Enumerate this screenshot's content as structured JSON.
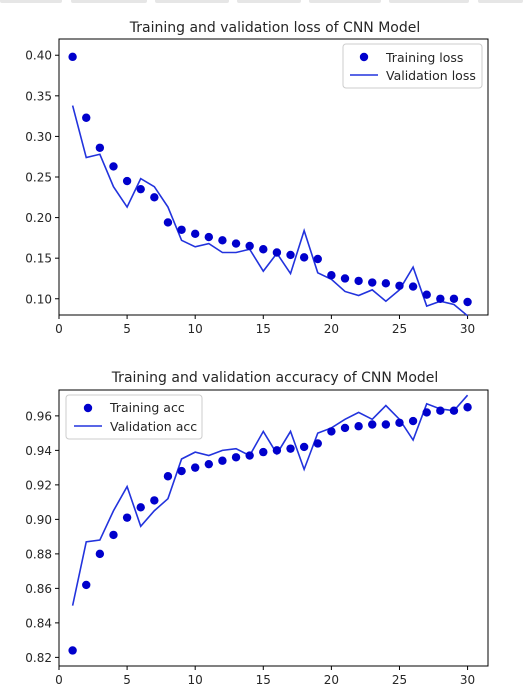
{
  "chart_data": [
    {
      "type": "scatter+line",
      "title": "Training and validation loss of CNN Model",
      "xlabel": "",
      "ylabel": "",
      "x": [
        1,
        2,
        3,
        4,
        5,
        6,
        7,
        8,
        9,
        10,
        11,
        12,
        13,
        14,
        15,
        16,
        17,
        18,
        19,
        20,
        21,
        22,
        23,
        24,
        25,
        26,
        27,
        28,
        29,
        30
      ],
      "xlim": [
        0,
        31.5
      ],
      "ylim": [
        0.08,
        0.42
      ],
      "xticks": [
        "0",
        "5",
        "10",
        "15",
        "20",
        "25",
        "30"
      ],
      "yticks": [
        "0.10",
        "0.15",
        "0.20",
        "0.25",
        "0.30",
        "0.35",
        "0.40"
      ],
      "series": [
        {
          "name": "Training loss",
          "style": "points",
          "color": "#0000cc",
          "values": [
            0.398,
            0.323,
            0.286,
            0.263,
            0.245,
            0.235,
            0.225,
            0.194,
            0.185,
            0.18,
            0.176,
            0.172,
            0.168,
            0.165,
            0.161,
            0.157,
            0.154,
            0.151,
            0.149,
            0.129,
            0.125,
            0.122,
            0.12,
            0.119,
            0.116,
            0.115,
            0.105,
            0.1,
            0.1,
            0.096
          ]
        },
        {
          "name": "Validation loss",
          "style": "line",
          "color": "#2233dd",
          "values": [
            0.338,
            0.274,
            0.278,
            0.238,
            0.213,
            0.248,
            0.238,
            0.213,
            0.172,
            0.164,
            0.168,
            0.157,
            0.157,
            0.161,
            0.134,
            0.156,
            0.131,
            0.184,
            0.132,
            0.124,
            0.109,
            0.104,
            0.111,
            0.097,
            0.111,
            0.139,
            0.091,
            0.097,
            0.093,
            0.079
          ]
        }
      ],
      "legend": "top-right",
      "grid": false
    },
    {
      "type": "scatter+line",
      "title": "Training and validation accuracy of CNN Model",
      "xlabel": "",
      "ylabel": "",
      "x": [
        1,
        2,
        3,
        4,
        5,
        6,
        7,
        8,
        9,
        10,
        11,
        12,
        13,
        14,
        15,
        16,
        17,
        18,
        19,
        20,
        21,
        22,
        23,
        24,
        25,
        26,
        27,
        28,
        29,
        30
      ],
      "xlim": [
        0,
        31.5
      ],
      "ylim": [
        0.815,
        0.975
      ],
      "xticks": [
        "0",
        "5",
        "10",
        "15",
        "20",
        "25",
        "30"
      ],
      "yticks": [
        "0.82",
        "0.84",
        "0.86",
        "0.88",
        "0.90",
        "0.92",
        "0.94",
        "0.96"
      ],
      "series": [
        {
          "name": "Training acc",
          "style": "points",
          "color": "#0000cc",
          "values": [
            0.824,
            0.862,
            0.88,
            0.891,
            0.901,
            0.907,
            0.911,
            0.925,
            0.928,
            0.93,
            0.932,
            0.934,
            0.936,
            0.937,
            0.939,
            0.94,
            0.941,
            0.942,
            0.944,
            0.951,
            0.953,
            0.954,
            0.955,
            0.955,
            0.956,
            0.957,
            0.962,
            0.963,
            0.963,
            0.965
          ]
        },
        {
          "name": "Validation acc",
          "style": "line",
          "color": "#2233dd",
          "values": [
            0.85,
            0.887,
            0.888,
            0.905,
            0.919,
            0.896,
            0.905,
            0.912,
            0.935,
            0.939,
            0.937,
            0.94,
            0.941,
            0.937,
            0.951,
            0.938,
            0.951,
            0.929,
            0.95,
            0.953,
            0.958,
            0.962,
            0.958,
            0.966,
            0.958,
            0.946,
            0.967,
            0.964,
            0.963,
            0.972
          ]
        }
      ],
      "legend": "top-left",
      "grid": false
    }
  ]
}
